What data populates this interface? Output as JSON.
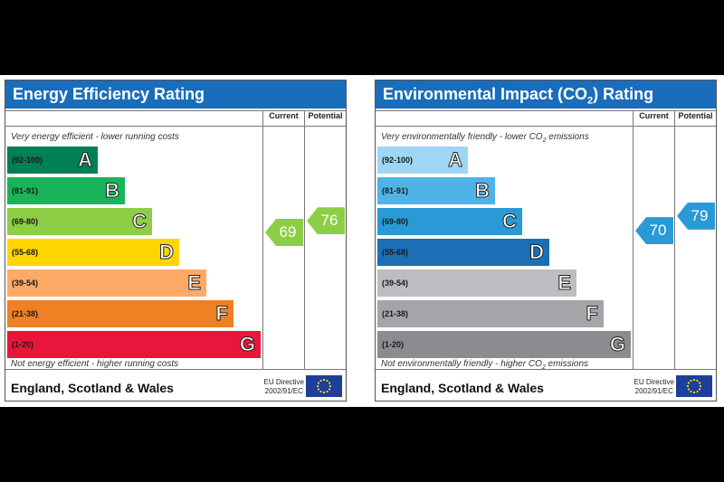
{
  "chart_data": [
    {
      "type": "bar",
      "title": "Energy Efficiency Rating",
      "column_headers": [
        "Current",
        "Potential"
      ],
      "top_note": "Very energy efficient - lower running costs",
      "bottom_note": "Not energy efficient - higher running costs",
      "bands": [
        {
          "range": "(92-100)",
          "letter": "A",
          "color": "#008054"
        },
        {
          "range": "(81-91)",
          "letter": "B",
          "color": "#19b459"
        },
        {
          "range": "(69-80)",
          "letter": "C",
          "color": "#8dce46"
        },
        {
          "range": "(55-68)",
          "letter": "D",
          "color": "#ffd500"
        },
        {
          "range": "(39-54)",
          "letter": "E",
          "color": "#fcaa65"
        },
        {
          "range": "(21-38)",
          "letter": "F",
          "color": "#ef8023"
        },
        {
          "range": "(1-20)",
          "letter": "G",
          "color": "#e9153b"
        }
      ],
      "current": {
        "value": 69,
        "band": "C",
        "color": "#8dce46"
      },
      "potential": {
        "value": 76,
        "band": "C",
        "color": "#8dce46"
      },
      "region": "England, Scotland & Wales",
      "directive": [
        "EU Directive",
        "2002/91/EC"
      ]
    },
    {
      "type": "bar",
      "title_prefix": "Environmental Impact (CO",
      "title_sub": "2",
      "title_suffix": ") Rating",
      "column_headers": [
        "Current",
        "Potential"
      ],
      "top_note_prefix": "Very environmentally friendly - lower CO",
      "top_note_sub": "2",
      "top_note_suffix": " emissions",
      "bottom_note_prefix": "Not environmentally friendly - higher CO",
      "bottom_note_sub": "2",
      "bottom_note_suffix": " emissions",
      "bands": [
        {
          "range": "(92-100)",
          "letter": "A",
          "color": "#9fd6f5"
        },
        {
          "range": "(81-91)",
          "letter": "B",
          "color": "#4eb3e6"
        },
        {
          "range": "(69-80)",
          "letter": "C",
          "color": "#2a9ad6"
        },
        {
          "range": "(55-68)",
          "letter": "D",
          "color": "#1b70b5"
        },
        {
          "range": "(39-54)",
          "letter": "E",
          "color": "#bcbdc0"
        },
        {
          "range": "(21-38)",
          "letter": "F",
          "color": "#a3a5a8"
        },
        {
          "range": "(1-20)",
          "letter": "G",
          "color": "#8a8c8f"
        }
      ],
      "current": {
        "value": 70,
        "band": "C",
        "color": "#2a9ad6"
      },
      "potential": {
        "value": 79,
        "band": "C",
        "color": "#2a9ad6"
      },
      "region": "England, Scotland & Wales",
      "directive": [
        "EU Directive",
        "2002/91/EC"
      ]
    }
  ]
}
